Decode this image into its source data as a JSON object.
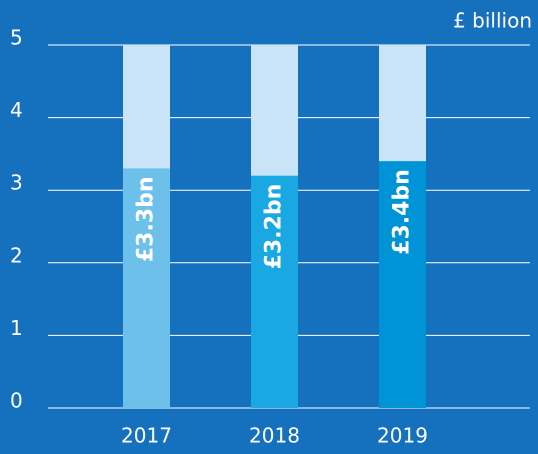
{
  "chart_data": {
    "type": "bar",
    "unit_label": "£ billion",
    "categories": [
      "2017",
      "2018",
      "2019"
    ],
    "values": [
      3.3,
      3.2,
      3.4
    ],
    "value_labels": [
      "£3.3bn",
      "£3.2bn",
      "£3.4bn"
    ],
    "colors": [
      "#6dc0ea",
      "#1aa8e2",
      "#0094d6"
    ],
    "track_color": "#c9e4f6",
    "ylim": [
      0,
      5
    ],
    "yticks": [
      0,
      1,
      2,
      3,
      4,
      5
    ],
    "grid": true
  }
}
